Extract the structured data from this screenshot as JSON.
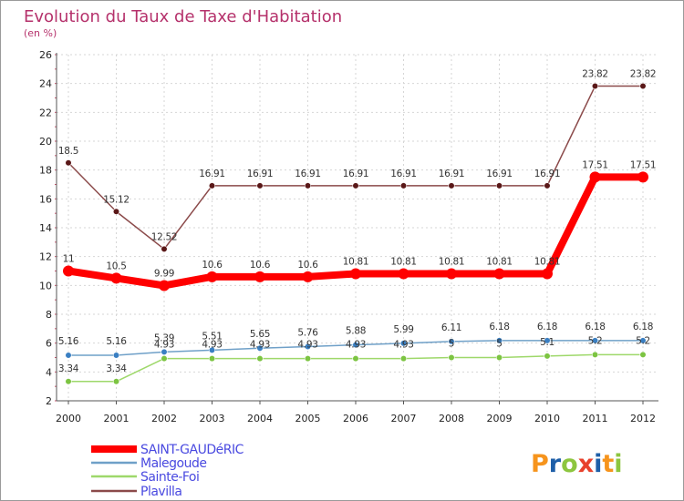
{
  "chart_data": {
    "type": "line",
    "title": "Evolution du Taux de Taxe d'Habitation",
    "subtitle": "(en %)",
    "xlabel": "",
    "ylabel": "",
    "categories": [
      "2000",
      "2001",
      "2002",
      "2003",
      "2004",
      "2005",
      "2006",
      "2007",
      "2008",
      "2009",
      "2010",
      "2011",
      "2012"
    ],
    "ylim": [
      2,
      26
    ],
    "yticks": [
      2,
      4,
      6,
      8,
      10,
      12,
      14,
      16,
      18,
      20,
      22,
      24,
      26
    ],
    "grid": true,
    "legend_position": "bottom-left",
    "series": [
      {
        "name": "SAINT-GAUDéRIC",
        "color": "#ff0000",
        "values": [
          11,
          10.5,
          9.99,
          10.6,
          10.6,
          10.6,
          10.81,
          10.81,
          10.81,
          10.81,
          10.81,
          17.51,
          17.51
        ],
        "labels": [
          "11",
          "10.5",
          "9.99",
          "10.6",
          "10.6",
          "10.6",
          "10.81",
          "10.81",
          "10.81",
          "10.81",
          "10.81",
          "17.51",
          "17.51"
        ]
      },
      {
        "name": "Malegoude",
        "color": "#6fa0c8",
        "marker": "#3a7fc2",
        "values": [
          5.16,
          5.16,
          5.39,
          5.51,
          5.65,
          5.76,
          5.88,
          5.99,
          6.11,
          6.18,
          6.18,
          6.18,
          6.18
        ],
        "labels": [
          "5.16",
          "5.16",
          "5.39",
          "5.51",
          "5.65",
          "5.76",
          "5.88",
          "5.99",
          "6.11",
          "6.18",
          "6.18",
          "6.18",
          "6.18"
        ]
      },
      {
        "name": "Sainte-Foi",
        "color": "#9ed86a",
        "marker": "#7cc442",
        "values": [
          3.34,
          3.34,
          4.93,
          4.93,
          4.93,
          4.93,
          4.93,
          4.93,
          5,
          5,
          5.1,
          5.2,
          5.2
        ],
        "labels": [
          "3.34",
          "3.34",
          "4.93",
          "4.93",
          "4.93",
          "4.93",
          "4.93",
          "4.93",
          "5",
          "5",
          "5.1",
          "5.2",
          "5.2"
        ]
      },
      {
        "name": "Plavilla",
        "color": "#8b4a4a",
        "marker": "#5a1818",
        "values": [
          18.5,
          15.12,
          12.52,
          16.91,
          16.91,
          16.91,
          16.91,
          16.91,
          16.91,
          16.91,
          16.91,
          23.82,
          23.82
        ],
        "labels": [
          "18.5",
          "15.12",
          "12.52",
          "16.91",
          "16.91",
          "16.91",
          "16.91",
          "16.91",
          "16.91",
          "16.91",
          "16.91",
          "23.82",
          "23.82"
        ]
      }
    ]
  },
  "logo": {
    "text": "Proxiti",
    "colors": [
      "#f6941d",
      "#1e5fa8",
      "#8dc63f",
      "#e8412c",
      "#1e5fa8",
      "#f6941d",
      "#8dc63f"
    ]
  }
}
